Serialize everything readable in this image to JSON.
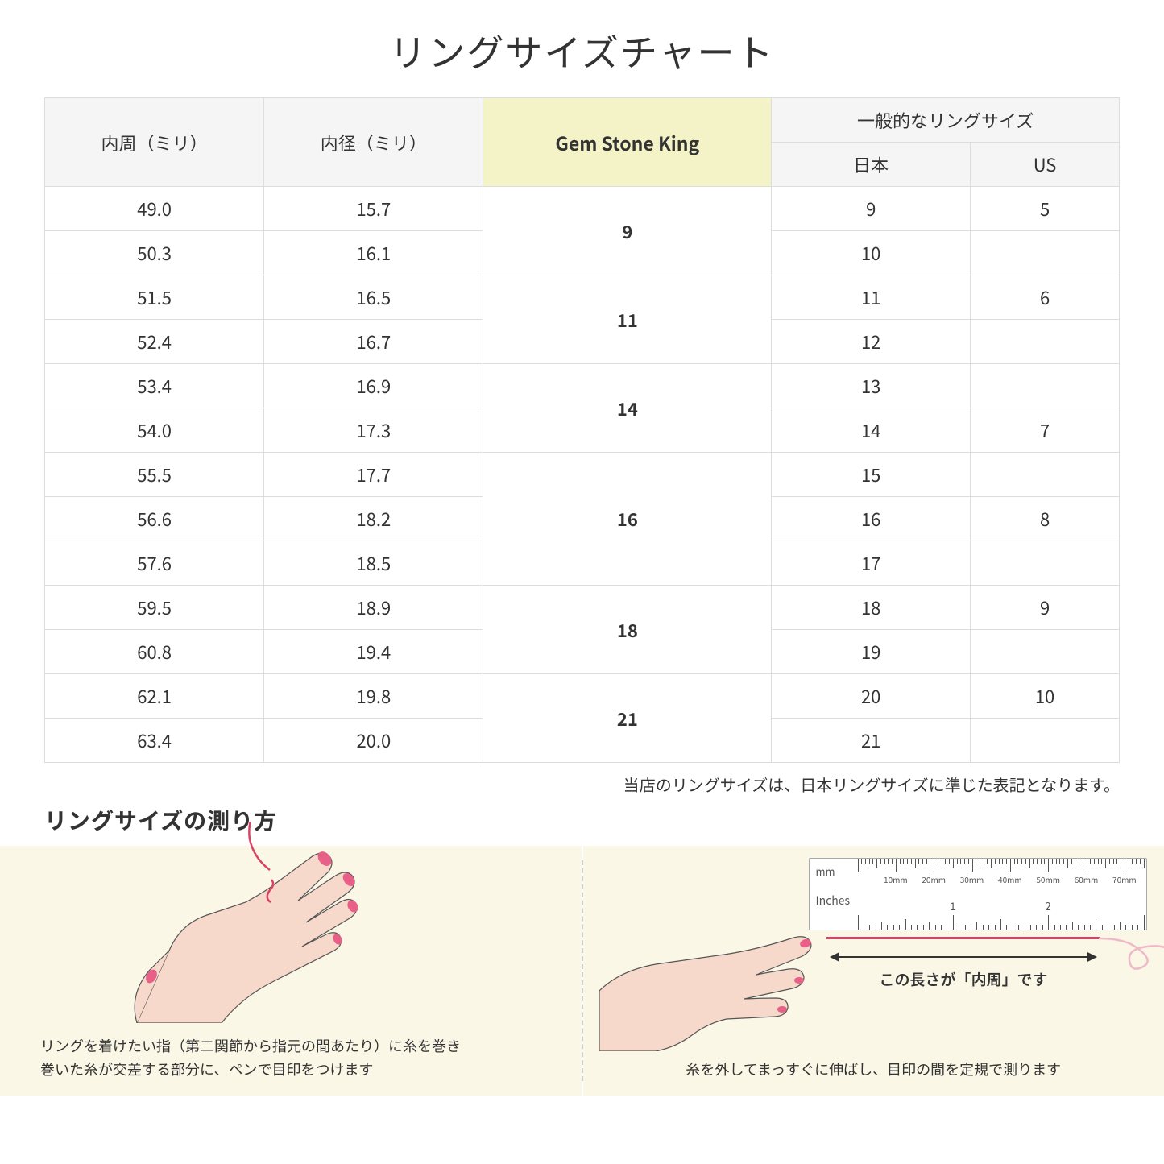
{
  "title": "リングサイズチャート",
  "headers": {
    "circumference": "内周（ミリ）",
    "diameter": "内径（ミリ）",
    "gsk": "Gem Stone King",
    "common": "一般的なリングサイズ",
    "jp": "日本",
    "us": "US"
  },
  "groups": [
    {
      "gsk": "9",
      "rows": [
        {
          "c": "49.0",
          "d": "15.7",
          "jp": "9",
          "us": "5"
        },
        {
          "c": "50.3",
          "d": "16.1",
          "jp": "10",
          "us": ""
        }
      ]
    },
    {
      "gsk": "11",
      "rows": [
        {
          "c": "51.5",
          "d": "16.5",
          "jp": "11",
          "us": "6"
        },
        {
          "c": "52.4",
          "d": "16.7",
          "jp": "12",
          "us": ""
        }
      ]
    },
    {
      "gsk": "14",
      "rows": [
        {
          "c": "53.4",
          "d": "16.9",
          "jp": "13",
          "us": ""
        },
        {
          "c": "54.0",
          "d": "17.3",
          "jp": "14",
          "us": "7"
        }
      ]
    },
    {
      "gsk": "16",
      "rows": [
        {
          "c": "55.5",
          "d": "17.7",
          "jp": "15",
          "us": ""
        },
        {
          "c": "56.6",
          "d": "18.2",
          "jp": "16",
          "us": "8"
        },
        {
          "c": "57.6",
          "d": "18.5",
          "jp": "17",
          "us": ""
        }
      ]
    },
    {
      "gsk": "18",
      "rows": [
        {
          "c": "59.5",
          "d": "18.9",
          "jp": "18",
          "us": "9"
        },
        {
          "c": "60.8",
          "d": "19.4",
          "jp": "19",
          "us": ""
        }
      ]
    },
    {
      "gsk": "21",
      "rows": [
        {
          "c": "62.1",
          "d": "19.8",
          "jp": "20",
          "us": "10"
        },
        {
          "c": "63.4",
          "d": "20.0",
          "jp": "21",
          "us": ""
        }
      ]
    }
  ],
  "note": "当店のリングサイズは、日本リングサイズに準じた表記となります。",
  "measure_title": "リングサイズの測り方",
  "caption_left": "リングを着けたい指（第二関節から指元の間あたり）に糸を巻き\n巻いた糸が交差する部分に、ペンで目印をつけます",
  "caption_right": "糸を外してまっすぐに伸ばし、目印の間を定規で測ります",
  "arrow_label": "この長さが「内周」です",
  "ruler": {
    "mm_label": "mm",
    "in_label": "Inches",
    "mm_marks": [
      "10mm",
      "20mm",
      "30mm",
      "40mm",
      "50mm",
      "60mm",
      "70mm"
    ],
    "in_marks": [
      "1",
      "2"
    ]
  },
  "colors": {
    "header_bg": "#f5f5f5",
    "gsk_bg": "#f4f3c7",
    "panel_bg": "#fbf7e6",
    "skin": "#f7d9cb",
    "nail": "#e85f87",
    "thread": "#d94365"
  }
}
